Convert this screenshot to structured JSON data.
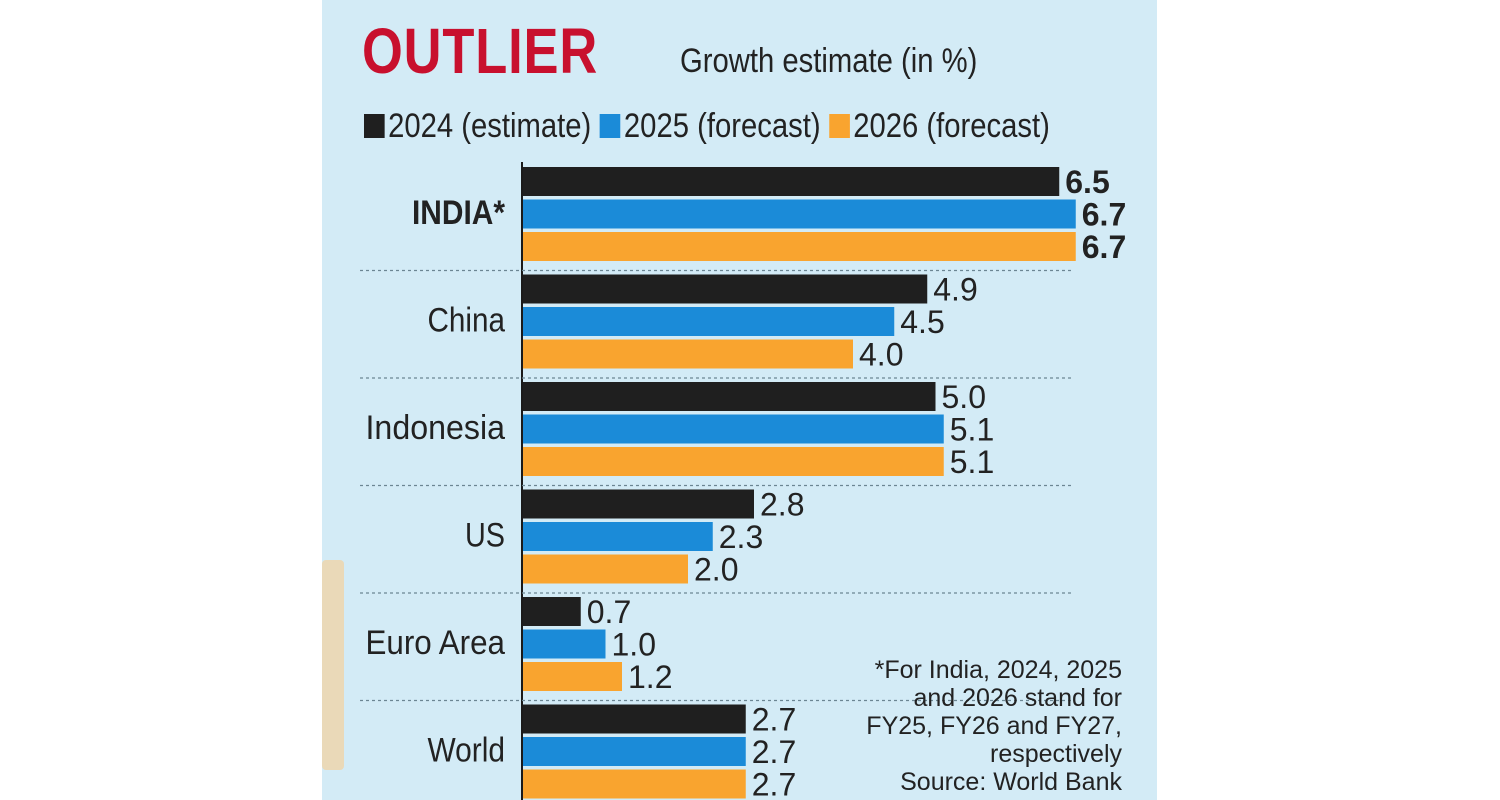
{
  "header": {
    "title": "OUTLIER",
    "subtitle": "Growth estimate (in %)"
  },
  "legend": [
    {
      "label": "2024 (estimate)",
      "color": "#1f1f1f"
    },
    {
      "label": "2025 (forecast)",
      "color": "#1b8bd8"
    },
    {
      "label": "2026 (forecast)",
      "color": "#f9a42f"
    }
  ],
  "chart_data": {
    "type": "bar",
    "orientation": "horizontal",
    "title": "OUTLIER",
    "subtitle": "Growth estimate (in %)",
    "xlabel": "",
    "ylabel": "",
    "xlim": [
      0,
      7
    ],
    "grid": false,
    "legend_position": "top",
    "categories": [
      "INDIA*",
      "China",
      "Indonesia",
      "US",
      "Euro Area",
      "World"
    ],
    "series": [
      {
        "name": "2024 (estimate)",
        "color": "#1f1f1f",
        "values": [
          6.5,
          4.9,
          5.0,
          2.8,
          0.7,
          2.7
        ],
        "labels": [
          "6.5",
          "4.9",
          "5.0",
          "2.8",
          "0.7",
          "2.7"
        ]
      },
      {
        "name": "2025 (forecast)",
        "color": "#1b8bd8",
        "values": [
          6.7,
          4.5,
          5.1,
          2.3,
          1.0,
          2.7
        ],
        "labels": [
          "6.7",
          "4.5",
          "5.1",
          "2.3",
          "1.0",
          "2.7"
        ]
      },
      {
        "name": "2026 (forecast)",
        "color": "#f9a42f",
        "values": [
          6.7,
          4.0,
          5.1,
          2.0,
          1.2,
          2.7
        ],
        "labels": [
          "6.7",
          "4.0",
          "5.1",
          "2.0",
          "1.2",
          "2.7"
        ]
      }
    ],
    "highlight_category": "INDIA*"
  },
  "footnote": {
    "lines": [
      "*For India, 2024, 2025",
      "and 2026 stand for",
      "FY25, FY26 and FY27,",
      "respectively",
      "Source: World Bank"
    ]
  }
}
